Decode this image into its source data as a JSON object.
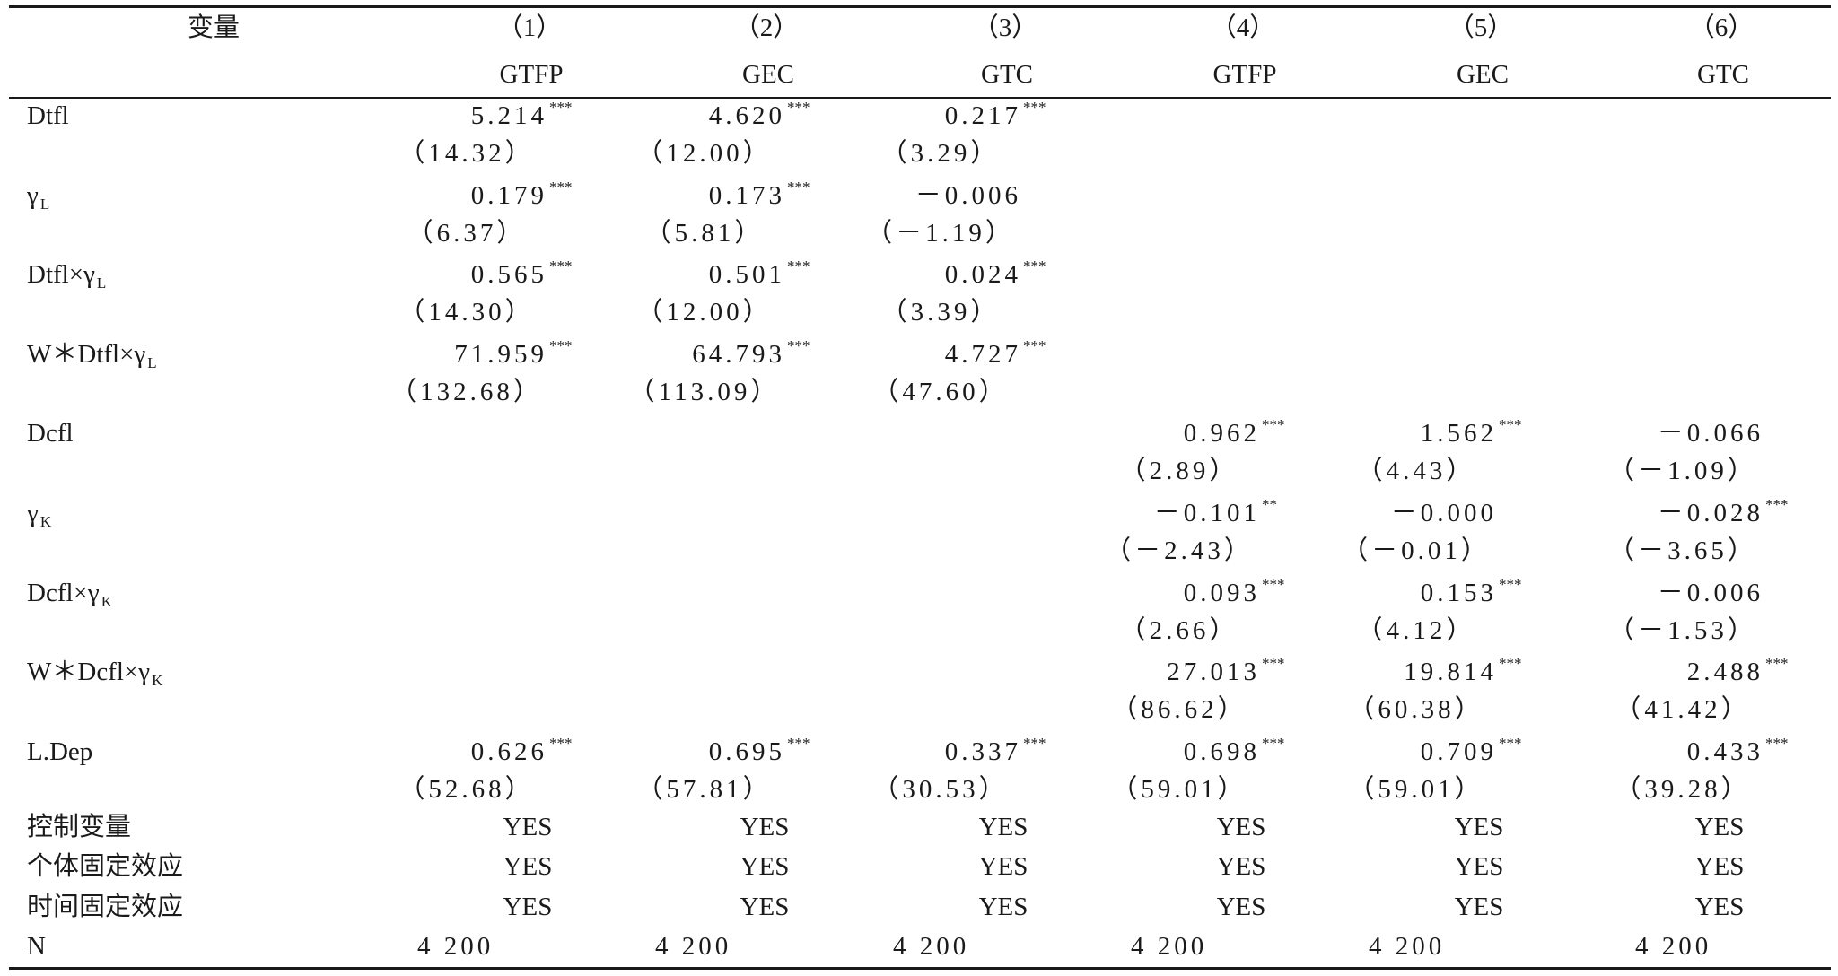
{
  "header": {
    "variable_label": "变量",
    "col_numbers": [
      "（1）",
      "（2）",
      "（3）",
      "（4）",
      "（5）",
      "（6）"
    ],
    "col_names": [
      "GTFP",
      "GEC",
      "GTC",
      "GTFP",
      "GEC",
      "GTC"
    ]
  },
  "rows": [
    {
      "label": "Dtfl",
      "sub": "",
      "coef": [
        "5.214",
        "4.620",
        "0.217",
        "",
        "",
        ""
      ],
      "stars": [
        "***",
        "***",
        "***",
        "",
        "",
        ""
      ],
      "tstat": [
        "（14.32）",
        "（12.00）",
        "（3.29）",
        "",
        "",
        ""
      ]
    },
    {
      "label": "γ",
      "sub": "L",
      "coef": [
        "0.179",
        "0.173",
        "－0.006",
        "",
        "",
        ""
      ],
      "stars": [
        "***",
        "***",
        "",
        "",
        "",
        ""
      ],
      "tstat": [
        "（6.37）",
        "（5.81）",
        "（－1.19）",
        "",
        "",
        ""
      ]
    },
    {
      "label": "Dtfl×γ",
      "sub": "L",
      "coef": [
        "0.565",
        "0.501",
        "0.024",
        "",
        "",
        ""
      ],
      "stars": [
        "***",
        "***",
        "***",
        "",
        "",
        ""
      ],
      "tstat": [
        "（14.30）",
        "（12.00）",
        "（3.39）",
        "",
        "",
        ""
      ]
    },
    {
      "label": "W＊Dtfl×γ",
      "sub": "L",
      "coef": [
        "71.959",
        "64.793",
        "4.727",
        "",
        "",
        ""
      ],
      "stars": [
        "***",
        "***",
        "***",
        "",
        "",
        ""
      ],
      "tstat": [
        "（132.68）",
        "（113.09）",
        "（47.60）",
        "",
        "",
        ""
      ]
    },
    {
      "label": "Dcfl",
      "sub": "",
      "coef": [
        "",
        "",
        "",
        "0.962",
        "1.562",
        "－0.066"
      ],
      "stars": [
        "",
        "",
        "",
        "***",
        "***",
        ""
      ],
      "tstat": [
        "",
        "",
        "",
        "（2.89）",
        "（4.43）",
        "（－1.09）"
      ]
    },
    {
      "label": "γ",
      "sub": "K",
      "coef": [
        "",
        "",
        "",
        "－0.101",
        "－0.000",
        "－0.028"
      ],
      "stars": [
        "",
        "",
        "",
        "**",
        "",
        "***"
      ],
      "tstat": [
        "",
        "",
        "",
        "（－2.43）",
        "（－0.01）",
        "（－3.65）"
      ]
    },
    {
      "label": "Dcfl×γ",
      "sub": "K",
      "coef": [
        "",
        "",
        "",
        "0.093",
        "0.153",
        "－0.006"
      ],
      "stars": [
        "",
        "",
        "",
        "***",
        "***",
        ""
      ],
      "tstat": [
        "",
        "",
        "",
        "（2.66）",
        "（4.12）",
        "（－1.53）"
      ]
    },
    {
      "label": "W＊Dcfl×γ",
      "sub": "K",
      "coef": [
        "",
        "",
        "",
        "27.013",
        "19.814",
        "2.488"
      ],
      "stars": [
        "",
        "",
        "",
        "***",
        "***",
        "***"
      ],
      "tstat": [
        "",
        "",
        "",
        "（86.62）",
        "（60.38）",
        "（41.42）"
      ]
    },
    {
      "label": "L.Dep",
      "sub": "",
      "coef": [
        "0.626",
        "0.695",
        "0.337",
        "0.698",
        "0.709",
        "0.433"
      ],
      "stars": [
        "***",
        "***",
        "***",
        "***",
        "***",
        "***"
      ],
      "tstat": [
        "（52.68）",
        "（57.81）",
        "（30.53）",
        "（59.01）",
        "（59.01）",
        "（39.28）"
      ]
    }
  ],
  "controls": [
    {
      "label": "控制变量",
      "values": [
        "YES",
        "YES",
        "YES",
        "YES",
        "YES",
        "YES"
      ]
    },
    {
      "label": "个体固定效应",
      "values": [
        "YES",
        "YES",
        "YES",
        "YES",
        "YES",
        "YES"
      ]
    },
    {
      "label": "时间固定效应",
      "values": [
        "YES",
        "YES",
        "YES",
        "YES",
        "YES",
        "YES"
      ]
    }
  ],
  "n_row": {
    "label": "N",
    "values": [
      "4 200",
      "4 200",
      "4 200",
      "4 200",
      "4 200",
      "4 200"
    ]
  }
}
